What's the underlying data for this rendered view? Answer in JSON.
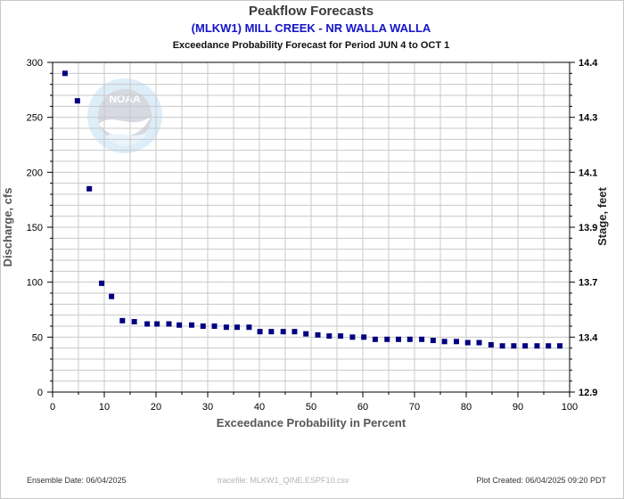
{
  "titles": {
    "main": "Peakflow Forecasts",
    "station": "(MLKW1) MILL CREEK - NR WALLA WALLA",
    "subtitle": "Exceedance Probability Forecast for Period JUN 4 to OCT 1"
  },
  "footer": {
    "ensemble_date": "Ensemble Date: 06/04/2025",
    "tracefile": "tracefile: MLKW1_QINE.ESPF10.csv",
    "plot_created": "Plot Created: 06/04/2025 09:20 PDT"
  },
  "logo": {
    "text": "NOAA",
    "icon": "noaa-logo-icon"
  },
  "colors": {
    "marker": "#000080",
    "grid": "#c8c8c8",
    "station_text": "#1414c8"
  },
  "chart_data": {
    "type": "scatter",
    "title": "Peakflow Forecasts",
    "xlabel": "Exceedance Probability in Percent",
    "ylabel": "Discharge, cfs",
    "y2label": "Stage, feet",
    "xlim": [
      0,
      100
    ],
    "ylim": [
      0,
      300
    ],
    "y2lim": [
      12.9,
      14.4
    ],
    "xticks": [
      0,
      10,
      20,
      30,
      40,
      50,
      60,
      70,
      80,
      90,
      100
    ],
    "yticks": [
      0,
      50,
      100,
      150,
      200,
      250,
      300
    ],
    "y2ticks": [
      "12.9",
      "13.4",
      "13.7",
      "13.9",
      "14.1",
      "14.3",
      "14.4"
    ],
    "grid": true,
    "series": [
      {
        "x": [
          2.4,
          4.8,
          7.1,
          9.5,
          11.4,
          13.5,
          15.8,
          18.3,
          20.2,
          22.5,
          24.5,
          26.9,
          29.1,
          31.3,
          33.6,
          35.7,
          38.0,
          40.1,
          42.3,
          44.6,
          46.8,
          49.0,
          51.3,
          53.5,
          55.7,
          58.0,
          60.2,
          62.4,
          64.7,
          66.9,
          69.1,
          71.4,
          73.6,
          75.8,
          78.1,
          80.3,
          82.5,
          84.8,
          87.0,
          89.2,
          91.4,
          93.7,
          95.9,
          98.1
        ],
        "y": [
          290,
          265,
          185,
          99,
          87,
          65,
          64,
          62,
          62,
          62,
          61,
          61,
          60,
          60,
          59,
          59,
          59,
          55,
          55,
          55,
          55,
          53,
          52,
          51,
          51,
          50,
          50,
          48,
          48,
          48,
          48,
          48,
          47,
          46,
          46,
          45,
          45,
          43,
          42,
          42,
          42,
          42,
          42,
          42
        ]
      }
    ]
  }
}
